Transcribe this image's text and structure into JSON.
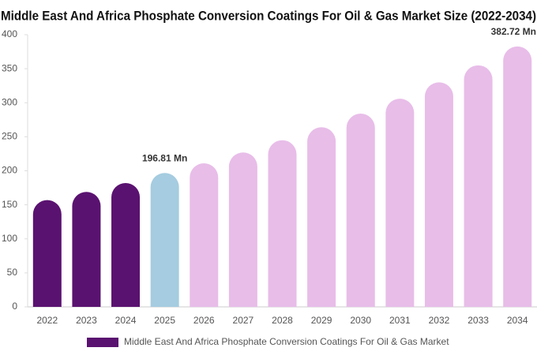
{
  "chart_data": {
    "type": "bar",
    "title": "Middle East And Africa Phosphate Conversion Coatings For Oil & Gas Market Size (2022-2034)",
    "categories": [
      "2022",
      "2023",
      "2024",
      "2025",
      "2026",
      "2027",
      "2028",
      "2029",
      "2030",
      "2031",
      "2032",
      "2033",
      "2034"
    ],
    "series": [
      {
        "name": "Middle East And Africa Phosphate Conversion Coatings For Oil & Gas Market",
        "color": "#5a1270",
        "values": [
          157,
          169,
          182,
          196.81,
          211,
          227,
          245,
          264,
          284,
          306,
          330,
          355,
          382.72
        ],
        "value_labels": [
          null,
          null,
          null,
          "196.81 Mn",
          null,
          null,
          null,
          null,
          null,
          null,
          null,
          null,
          "382.72 Mn"
        ],
        "colors": [
          "#5a1270",
          "#5a1270",
          "#5a1270",
          "#a5cce0",
          "#e8bde8",
          "#e8bde8",
          "#e8bde8",
          "#e8bde8",
          "#e8bde8",
          "#e8bde8",
          "#e8bde8",
          "#e8bde8",
          "#e8bde8"
        ]
      }
    ],
    "ylim": [
      0,
      400
    ],
    "yticks": [
      0,
      50,
      100,
      150,
      200,
      250,
      300,
      350,
      400
    ],
    "grid": false,
    "legend": "bottom"
  }
}
